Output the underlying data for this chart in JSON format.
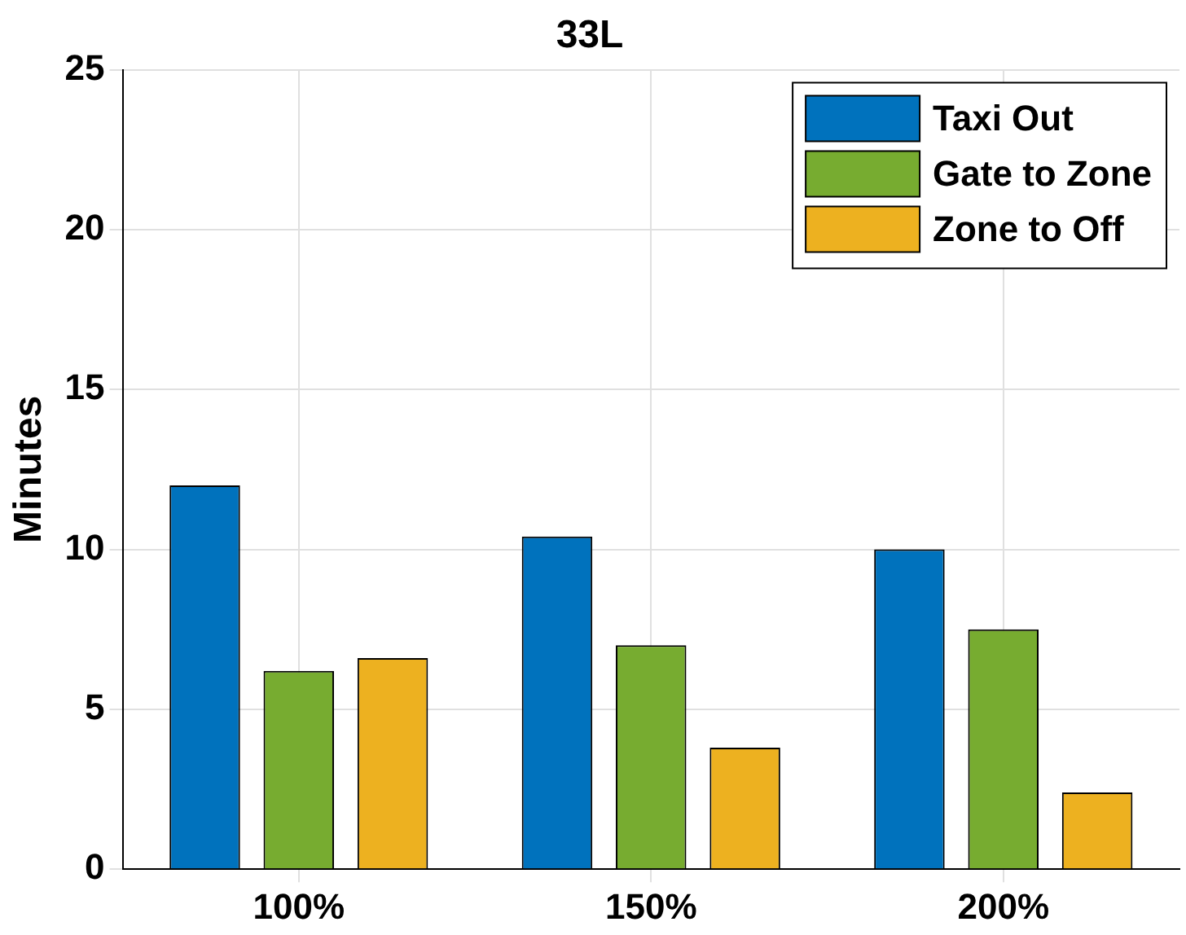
{
  "chart_data": {
    "type": "bar",
    "title": "33L",
    "ylabel": "Minutes",
    "categories": [
      "100%",
      "150%",
      "200%"
    ],
    "series": [
      {
        "name": "Taxi Out",
        "color": "#0072bd",
        "values": [
          12,
          10.4,
          10
        ]
      },
      {
        "name": "Gate to Zone",
        "color": "#77ac30",
        "values": [
          6.2,
          7,
          7.5
        ]
      },
      {
        "name": "Zone to Off",
        "color": "#edb120",
        "values": [
          6.6,
          3.8,
          2.4
        ]
      }
    ],
    "ylim": [
      0,
      25
    ],
    "yticks": [
      0,
      5,
      10,
      15,
      20,
      25
    ],
    "grid": true,
    "legend": "top right"
  }
}
